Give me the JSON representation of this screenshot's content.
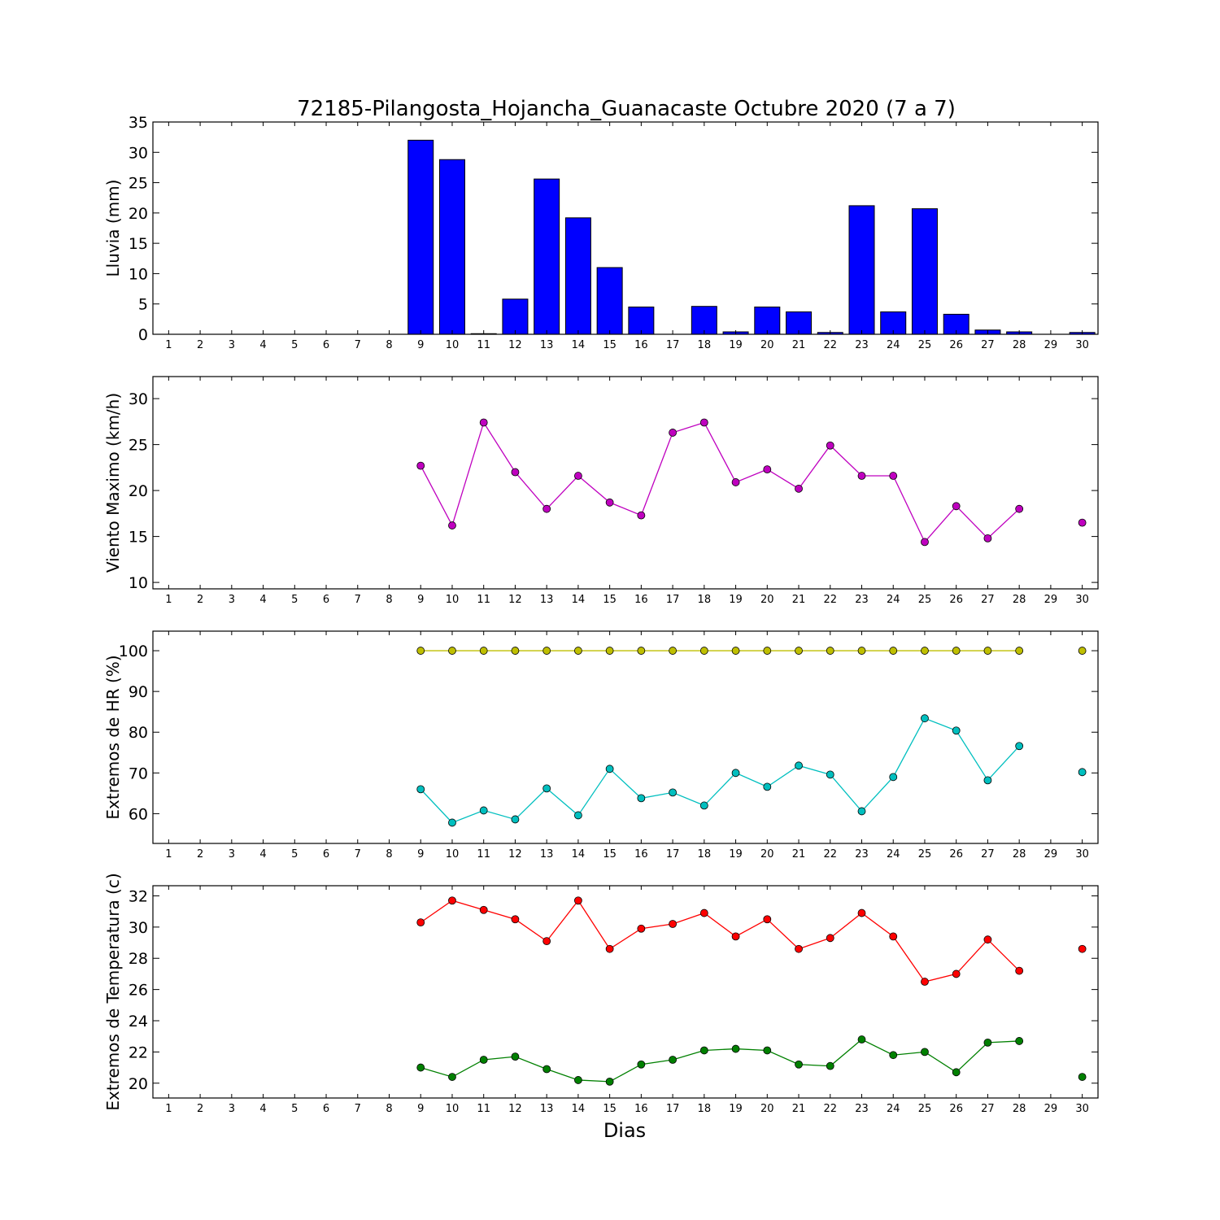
{
  "figure": {
    "title": "72185-Pilangosta_Hojancha_Guanacaste Octubre 2020  (7 a 7)",
    "xlabel": "Dias"
  },
  "chart_data": [
    {
      "type": "bar",
      "ylabel": "Lluvia (mm)",
      "xlim": [
        0.5,
        30.5
      ],
      "ylim": [
        0,
        35
      ],
      "yticks": [
        0,
        5,
        10,
        15,
        20,
        25,
        30,
        35
      ],
      "x": [
        1,
        2,
        3,
        4,
        5,
        6,
        7,
        8,
        9,
        10,
        11,
        12,
        13,
        14,
        15,
        16,
        17,
        18,
        19,
        20,
        21,
        22,
        23,
        24,
        25,
        26,
        27,
        28,
        29,
        30
      ],
      "series": [
        {
          "color": "#0000ff",
          "values": [
            0,
            0,
            0,
            0,
            0,
            0,
            0,
            0,
            32.0,
            28.8,
            0.1,
            5.8,
            25.6,
            19.2,
            11.0,
            4.5,
            0,
            4.6,
            0.4,
            4.5,
            3.7,
            0.3,
            21.2,
            3.7,
            20.7,
            3.3,
            0.7,
            0.4,
            0,
            0.3
          ]
        }
      ]
    },
    {
      "type": "line",
      "ylabel": "Viento Maximo (km/h)",
      "xlim": [
        0.5,
        30.5
      ],
      "ylim": [
        9.3,
        32.4
      ],
      "yticks": [
        10,
        15,
        20,
        25,
        30
      ],
      "x": [
        1,
        2,
        3,
        4,
        5,
        6,
        7,
        8,
        9,
        10,
        11,
        12,
        13,
        14,
        15,
        16,
        17,
        18,
        19,
        20,
        21,
        22,
        23,
        24,
        25,
        26,
        27,
        28,
        29,
        30
      ],
      "series": [
        {
          "color": "#bf00bf",
          "values": [
            null,
            null,
            null,
            null,
            null,
            null,
            null,
            null,
            22.7,
            16.2,
            27.4,
            22.0,
            18.0,
            21.6,
            18.7,
            17.3,
            26.3,
            27.4,
            20.9,
            22.3,
            20.2,
            24.9,
            21.6,
            21.6,
            14.4,
            18.3,
            14.8,
            18.0,
            null,
            16.5
          ]
        }
      ]
    },
    {
      "type": "line",
      "ylabel": "Extremos de HR (%)",
      "xlim": [
        0.5,
        30.5
      ],
      "ylim": [
        52.7,
        104.8
      ],
      "yticks": [
        60,
        70,
        80,
        90,
        100
      ],
      "x": [
        1,
        2,
        3,
        4,
        5,
        6,
        7,
        8,
        9,
        10,
        11,
        12,
        13,
        14,
        15,
        16,
        17,
        18,
        19,
        20,
        21,
        22,
        23,
        24,
        25,
        26,
        27,
        28,
        29,
        30
      ],
      "series": [
        {
          "color": "#bfbf00",
          "values": [
            null,
            null,
            null,
            null,
            null,
            null,
            null,
            null,
            100,
            100,
            100,
            100,
            100,
            100,
            100,
            100,
            100,
            100,
            100,
            100,
            100,
            100,
            100,
            100,
            100,
            100,
            100,
            100,
            null,
            100
          ]
        },
        {
          "color": "#00bfbf",
          "values": [
            null,
            null,
            null,
            null,
            null,
            null,
            null,
            null,
            66.0,
            57.8,
            60.8,
            58.6,
            66.2,
            59.6,
            71.0,
            63.8,
            65.2,
            62.0,
            70.0,
            66.6,
            71.8,
            69.6,
            60.6,
            69.0,
            83.4,
            80.4,
            68.2,
            76.6,
            null,
            70.2
          ]
        }
      ]
    },
    {
      "type": "line",
      "ylabel": "Extremos de Temperatura (c)",
      "xlim": [
        0.5,
        30.5
      ],
      "ylim": [
        19.05,
        32.65
      ],
      "yticks": [
        20,
        22,
        24,
        26,
        28,
        30,
        32
      ],
      "x": [
        1,
        2,
        3,
        4,
        5,
        6,
        7,
        8,
        9,
        10,
        11,
        12,
        13,
        14,
        15,
        16,
        17,
        18,
        19,
        20,
        21,
        22,
        23,
        24,
        25,
        26,
        27,
        28,
        29,
        30
      ],
      "series": [
        {
          "color": "#ff0000",
          "values": [
            null,
            null,
            null,
            null,
            null,
            null,
            null,
            null,
            30.3,
            31.7,
            31.1,
            30.5,
            29.1,
            31.7,
            28.6,
            29.9,
            30.2,
            30.9,
            29.4,
            30.5,
            28.6,
            29.3,
            30.9,
            29.4,
            26.5,
            27.0,
            29.2,
            27.2,
            null,
            28.6
          ]
        },
        {
          "color": "#008000",
          "values": [
            null,
            null,
            null,
            null,
            null,
            null,
            null,
            null,
            21.0,
            20.4,
            21.5,
            21.7,
            20.9,
            20.2,
            20.1,
            21.2,
            21.5,
            22.1,
            22.2,
            22.1,
            21.2,
            21.1,
            22.8,
            21.8,
            22.0,
            20.7,
            22.6,
            22.7,
            null,
            20.4
          ]
        }
      ]
    }
  ]
}
